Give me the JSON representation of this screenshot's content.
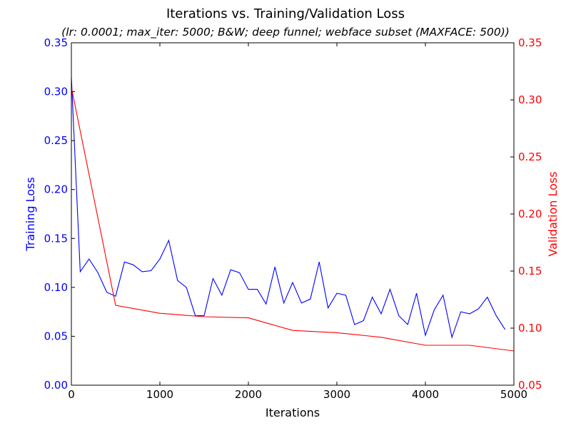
{
  "chart_data": {
    "type": "line",
    "title": "Iterations vs. Training/Validation Loss",
    "subtitle": "(lr: 0.0001; max_iter: 5000; B&W; deep funnel; webface subset (MAXFACE: 500))",
    "xlabel": "Iterations",
    "ylabel_left": "Training Loss",
    "ylabel_right": "Validation Loss",
    "xlim": [
      0,
      5000
    ],
    "ylim_left": [
      0.0,
      0.35
    ],
    "ylim_right": [
      0.05,
      0.35
    ],
    "xticks": [
      "0",
      "1000",
      "2000",
      "3000",
      "4000",
      "5000"
    ],
    "yticks_left": [
      "0.00",
      "0.05",
      "0.10",
      "0.15",
      "0.20",
      "0.25",
      "0.30",
      "0.35"
    ],
    "yticks_right": [
      "0.05",
      "0.10",
      "0.15",
      "0.20",
      "0.25",
      "0.30",
      "0.35"
    ],
    "grid": false,
    "series": [
      {
        "axis": "left",
        "color": "#0000ff",
        "x": [
          0,
          100,
          200,
          300,
          400,
          500,
          600,
          700,
          800,
          900,
          1000,
          1100,
          1200,
          1300,
          1400,
          1500,
          1600,
          1700,
          1800,
          1900,
          2000,
          2100,
          2200,
          2300,
          2400,
          2500,
          2600,
          2700,
          2800,
          2900,
          3000,
          3100,
          3200,
          3300,
          3400,
          3500,
          3600,
          3700,
          3800,
          3900,
          4000,
          4100,
          4200,
          4300,
          4400,
          4500,
          4600,
          4700,
          4800,
          4900
        ],
        "y": [
          0.315,
          0.116,
          0.129,
          0.115,
          0.095,
          0.091,
          0.126,
          0.123,
          0.116,
          0.117,
          0.129,
          0.148,
          0.107,
          0.1,
          0.071,
          0.071,
          0.109,
          0.092,
          0.118,
          0.115,
          0.098,
          0.098,
          0.083,
          0.121,
          0.084,
          0.105,
          0.084,
          0.088,
          0.126,
          0.079,
          0.094,
          0.092,
          0.062,
          0.066,
          0.09,
          0.073,
          0.098,
          0.071,
          0.062,
          0.094,
          0.051,
          0.077,
          0.092,
          0.049,
          0.075,
          0.073,
          0.078,
          0.09,
          0.071,
          0.057
        ]
      },
      {
        "axis": "right",
        "color": "#ff0000",
        "x": [
          0,
          500,
          1000,
          1500,
          2000,
          2500,
          3000,
          3500,
          4000,
          4500,
          5000
        ],
        "y": [
          0.311,
          0.12,
          0.113,
          0.11,
          0.109,
          0.098,
          0.096,
          0.092,
          0.085,
          0.085,
          0.08
        ]
      }
    ]
  }
}
